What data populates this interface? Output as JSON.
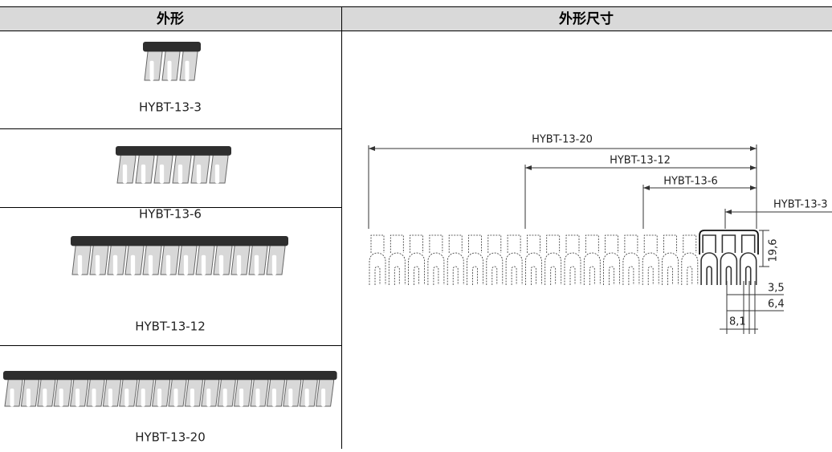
{
  "table": {
    "headers": [
      "外形",
      "外形尺寸"
    ],
    "rows": [
      {
        "label": "HYBT-13-3"
      },
      {
        "label": "HYBT-13-6"
      },
      {
        "label": "HYBT-13-12"
      },
      {
        "label": "HYBT-13-20"
      }
    ]
  },
  "drawing": {
    "dimension_labels": [
      "HYBT-13-20",
      "HYBT-13-12",
      "HYBT-13-6",
      "HYBT-13-3"
    ],
    "measurements": [
      "19,6",
      "3,5",
      "6,4",
      "8,1"
    ]
  }
}
